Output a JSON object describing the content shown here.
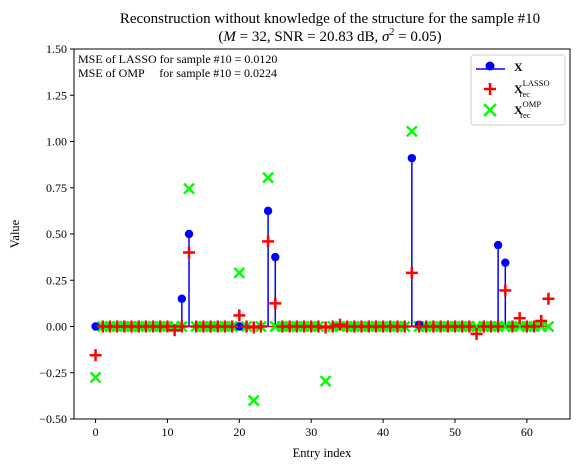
{
  "chart_data": {
    "type": "scatter",
    "title_line1": "Reconstruction without knowledge of the structure for the sample #10",
    "title_line2_prefix": "(",
    "title_line2_M": "M",
    "title_line2_eq1": " = 32, SNR = 20.83 dB, ",
    "title_line2_sigma": "σ",
    "title_line2_sq": "2",
    "title_line2_eq2": " = 0.05)",
    "xlabel": "Entry index",
    "ylabel": "Value",
    "xlim": [
      -3,
      66
    ],
    "ylim": [
      -0.5,
      1.5
    ],
    "xticks": [
      0,
      10,
      20,
      30,
      40,
      50,
      60
    ],
    "yticks": [
      "−0.50",
      "−0.25",
      "0.00",
      "0.25",
      "0.50",
      "0.75",
      "1.00",
      "1.25",
      "1.50"
    ],
    "ytick_values": [
      -0.5,
      -0.25,
      0,
      0.25,
      0.5,
      0.75,
      1.0,
      1.25,
      1.5
    ],
    "annotations": [
      "MSE of LASSO for sample #10 = 0.0120",
      "MSE of OMP     for sample #10 = 0.0224"
    ],
    "legend_position": "top-right",
    "series": [
      {
        "name": "X",
        "color": "#0000ff",
        "marker": "circle",
        "stem": true,
        "points": [
          [
            0,
            0.0
          ],
          [
            12,
            0.15
          ],
          [
            13,
            0.5
          ],
          [
            20,
            0.0
          ],
          [
            24,
            0.625
          ],
          [
            25,
            0.375
          ],
          [
            44,
            0.91
          ],
          [
            45,
            0.01
          ],
          [
            56,
            0.44
          ],
          [
            57,
            0.345
          ]
        ]
      },
      {
        "name": "X_rec^LASSO",
        "color": "#ff0000",
        "marker": "plus",
        "points": [
          [
            0,
            -0.155
          ],
          [
            11,
            -0.02
          ],
          [
            13,
            0.4
          ],
          [
            20,
            0.06
          ],
          [
            22,
            -0.005
          ],
          [
            24,
            0.46
          ],
          [
            25,
            0.125
          ],
          [
            32,
            -0.005
          ],
          [
            34,
            0.01
          ],
          [
            44,
            0.29
          ],
          [
            53,
            -0.04
          ],
          [
            57,
            0.195
          ],
          [
            59,
            0.045
          ],
          [
            62,
            0.03
          ],
          [
            63,
            0.15
          ]
        ]
      },
      {
        "name": "X_rec^OMP",
        "color": "#00ff00",
        "marker": "x",
        "points": [
          [
            0,
            -0.275
          ],
          [
            13,
            0.745
          ],
          [
            20,
            0.29
          ],
          [
            22,
            -0.4
          ],
          [
            24,
            0.805
          ],
          [
            32,
            -0.295
          ],
          [
            44,
            1.055
          ]
        ]
      }
    ],
    "legend": {
      "x_label": "X",
      "lasso_main": "X",
      "lasso_sub": "rec",
      "lasso_sup": "LASSO",
      "omp_main": "X",
      "omp_sub": "rec",
      "omp_sup": "OMP"
    }
  }
}
